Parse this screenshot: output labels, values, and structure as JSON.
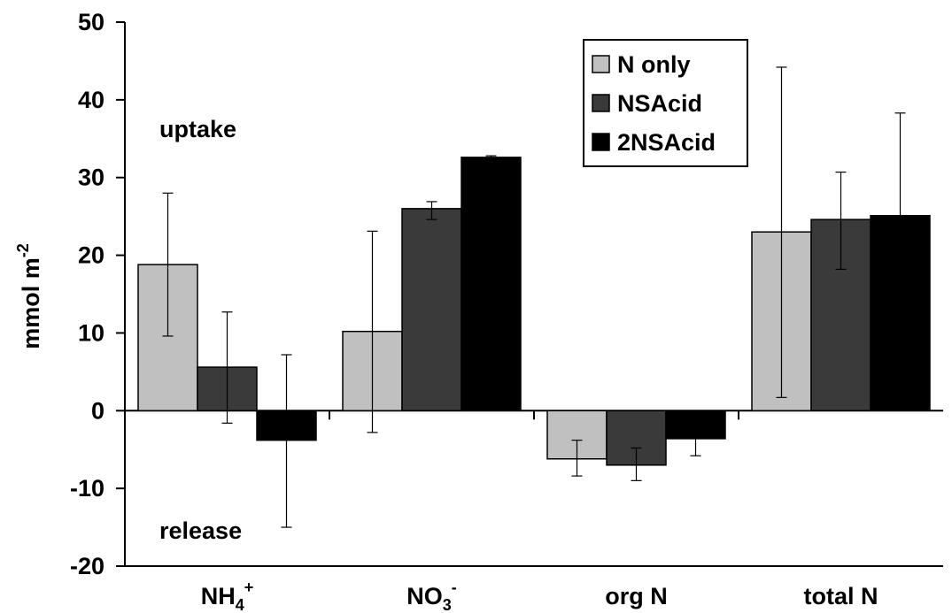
{
  "chart_data": {
    "type": "bar",
    "ylabel": "mmol m",
    "ylabel_sup": "-2",
    "ylim": [
      -20,
      50
    ],
    "yticks": [
      "50",
      "40",
      "30",
      "20",
      "10",
      "0",
      "-10",
      "-20"
    ],
    "ytick_values": [
      50,
      40,
      30,
      20,
      10,
      0,
      -10,
      -20
    ],
    "categories": [
      {
        "base": "NH",
        "sub": "4",
        "sup": "+"
      },
      {
        "base": "NO",
        "sub": "3",
        "sup": "-"
      },
      {
        "base": "org N",
        "sub": "",
        "sup": ""
      },
      {
        "base": "total N",
        "sub": "",
        "sup": ""
      }
    ],
    "series": [
      {
        "name": "N only",
        "color": "#c0c0c0",
        "values": [
          18.8,
          10.2,
          -6.2,
          23.0
        ],
        "err_low": [
          9.6,
          -2.8,
          -8.4,
          1.7
        ],
        "err_high": [
          28.0,
          23.1,
          -3.8,
          44.2
        ]
      },
      {
        "name": "NSAcid",
        "color": "#3a3a3a",
        "values": [
          5.6,
          26.0,
          -7.0,
          24.6
        ],
        "err_low": [
          -1.6,
          24.6,
          -9.0,
          18.2
        ],
        "err_high": [
          12.7,
          26.9,
          -4.8,
          30.7
        ]
      },
      {
        "name": "2NSAcid",
        "color": "#000000",
        "values": [
          -3.8,
          32.6,
          -3.6,
          25.1
        ],
        "err_low": [
          -15.0,
          32.4,
          -5.8,
          25.1
        ],
        "err_high": [
          7.2,
          32.8,
          -3.6,
          38.3
        ]
      }
    ],
    "annotations": [
      "uptake",
      "release"
    ],
    "legend_position": "top-right"
  }
}
